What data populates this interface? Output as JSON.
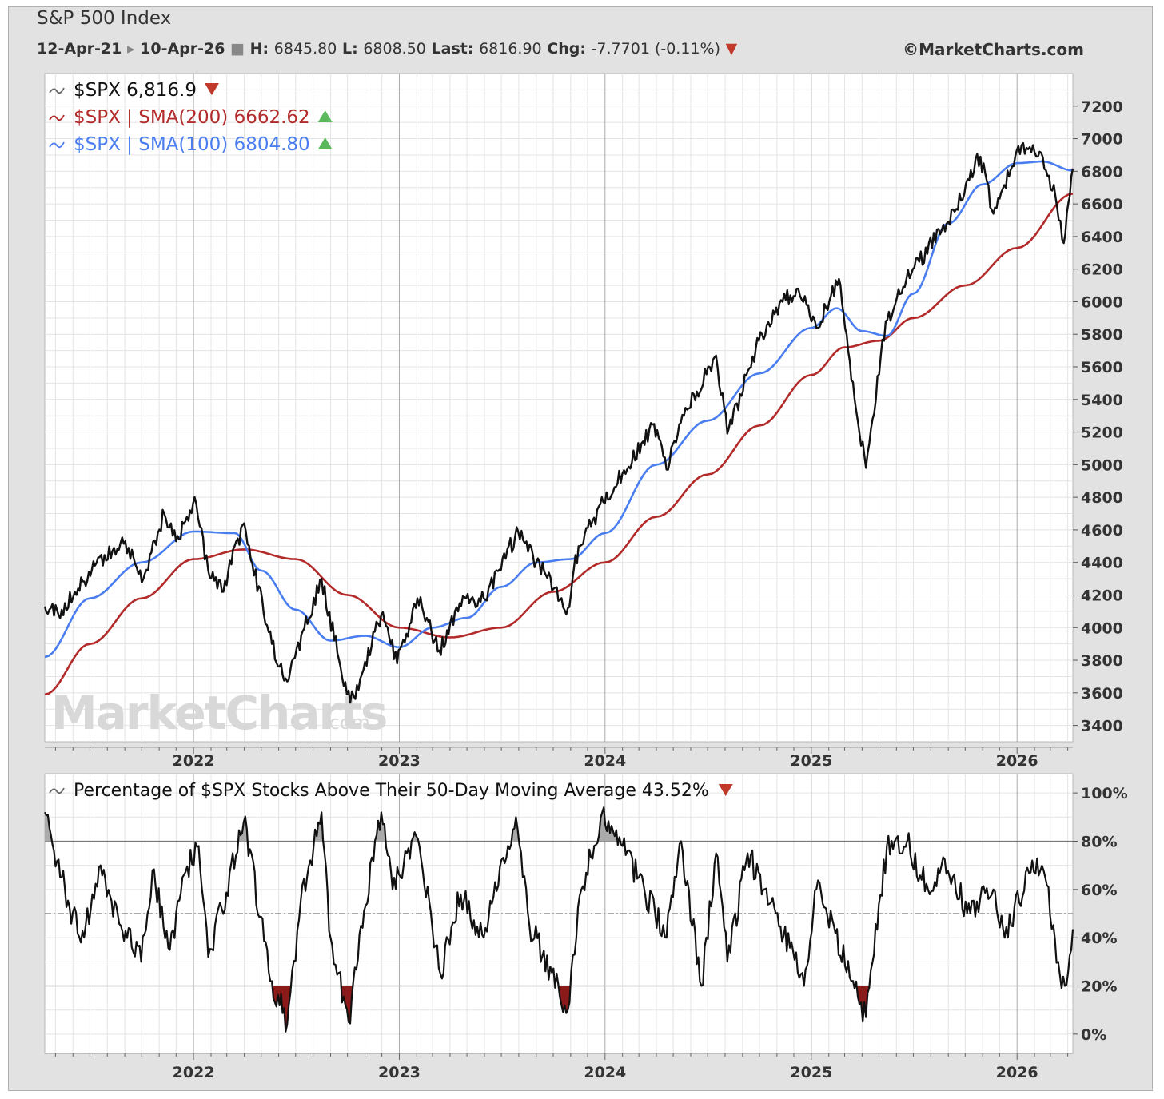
{
  "header": {
    "title": "S&P 500 Index",
    "date_start": "12-Apr-21",
    "date_end": "10-Apr-26",
    "high_label": "H:",
    "high_value": "6845.80",
    "low_label": "L:",
    "low_value": "6808.50",
    "last_label": "Last:",
    "last_value": "6816.90",
    "chg_label": "Chg:",
    "chg_value": "-7.7701 (-0.11%)",
    "copyright": "©MarketCharts.com"
  },
  "watermark": "MarketCharts.com",
  "colors": {
    "price": "#111111",
    "sma200": "#b22a2a",
    "sma100": "#4a7ef0",
    "up": "#5cb85c",
    "down": "#c0392b"
  },
  "legend_top": [
    {
      "text": "$SPX 6,816.9",
      "color": "#111111",
      "arrow": "down"
    },
    {
      "text": "$SPX | SMA(200) 6662.62",
      "color": "#b22a2a",
      "arrow": "up"
    },
    {
      "text": "$SPX | SMA(100) 6804.80",
      "color": "#4a7ef0",
      "arrow": "up"
    }
  ],
  "legend_bottom": {
    "text": "Percentage of $SPX Stocks Above Their 50-Day Moving Average 43.52%",
    "color": "#111111",
    "arrow": "down"
  },
  "chart_data": [
    {
      "type": "line",
      "x_range": [
        "2021-04-12",
        "2026-04-10"
      ],
      "x_ticks": [
        "2022",
        "2023",
        "2024",
        "2025",
        "2026"
      ],
      "ylim": [
        3300,
        7400
      ],
      "y_ticks": [
        3400,
        3600,
        3800,
        4000,
        4200,
        4400,
        4600,
        4800,
        5000,
        5200,
        5400,
        5600,
        5800,
        6000,
        6200,
        6400,
        6600,
        6800,
        7000,
        7200
      ],
      "series": [
        {
          "name": "$SPX",
          "x": [
            "2021-04-12",
            "2021-05-12",
            "2021-06-10",
            "2021-07-10",
            "2021-08-10",
            "2021-09-02",
            "2021-10-04",
            "2021-11-10",
            "2021-12-01",
            "2022-01-03",
            "2022-01-27",
            "2022-02-23",
            "2022-03-29",
            "2022-05-20",
            "2022-06-16",
            "2022-08-16",
            "2022-09-30",
            "2022-10-12",
            "2022-11-30",
            "2022-12-28",
            "2023-02-02",
            "2023-03-13",
            "2023-04-18",
            "2023-05-31",
            "2023-07-31",
            "2023-09-01",
            "2023-10-27",
            "2023-11-15",
            "2023-12-29",
            "2024-03-28",
            "2024-04-19",
            "2024-05-20",
            "2024-07-16",
            "2024-08-05",
            "2024-09-30",
            "2024-11-11",
            "2024-12-06",
            "2025-01-13",
            "2025-02-19",
            "2025-03-13",
            "2025-04-08",
            "2025-05-13",
            "2025-06-30",
            "2025-08-29",
            "2025-10-28",
            "2025-11-20",
            "2026-01-09",
            "2026-02-10",
            "2026-03-10",
            "2026-03-25",
            "2026-04-10"
          ],
          "values": [
            4130,
            4110,
            4240,
            4380,
            4470,
            4530,
            4300,
            4700,
            4530,
            4800,
            4350,
            4220,
            4630,
            3900,
            3670,
            4300,
            3590,
            3580,
            4080,
            3780,
            4180,
            3860,
            4150,
            4180,
            4590,
            4400,
            4120,
            4500,
            4770,
            5250,
            4970,
            5300,
            5670,
            5190,
            5760,
            6000,
            6080,
            5840,
            6140,
            5520,
            4980,
            5880,
            6200,
            6480,
            6890,
            6540,
            6960,
            6920,
            6650,
            6360,
            6816.9
          ]
        },
        {
          "name": "$SPX | SMA(200)",
          "x": [
            "2021-04-12",
            "2021-07-01",
            "2021-10-01",
            "2022-01-01",
            "2022-04-01",
            "2022-07-01",
            "2022-10-01",
            "2023-01-01",
            "2023-04-01",
            "2023-07-01",
            "2023-10-01",
            "2024-01-01",
            "2024-04-01",
            "2024-07-01",
            "2024-10-01",
            "2025-01-01",
            "2025-03-01",
            "2025-05-01",
            "2025-07-01",
            "2025-10-01",
            "2026-01-01",
            "2026-04-10"
          ],
          "values": [
            3590,
            3900,
            4180,
            4420,
            4480,
            4420,
            4200,
            4000,
            3940,
            4000,
            4220,
            4400,
            4680,
            4940,
            5240,
            5550,
            5720,
            5760,
            5900,
            6100,
            6330,
            6662.62
          ]
        },
        {
          "name": "$SPX | SMA(100)",
          "x": [
            "2021-04-12",
            "2021-07-01",
            "2021-10-01",
            "2022-01-01",
            "2022-03-15",
            "2022-05-01",
            "2022-07-01",
            "2022-09-01",
            "2022-11-01",
            "2023-01-01",
            "2023-03-01",
            "2023-05-01",
            "2023-07-01",
            "2023-09-01",
            "2023-11-01",
            "2024-01-01",
            "2024-04-01",
            "2024-07-01",
            "2024-10-01",
            "2025-01-01",
            "2025-02-15",
            "2025-04-01",
            "2025-05-15",
            "2025-07-01",
            "2025-09-01",
            "2025-11-01",
            "2026-01-01",
            "2026-02-15",
            "2026-04-10"
          ],
          "values": [
            3820,
            4180,
            4400,
            4590,
            4580,
            4350,
            4110,
            3920,
            3950,
            3880,
            4000,
            4060,
            4250,
            4400,
            4420,
            4580,
            5000,
            5270,
            5560,
            5840,
            5960,
            5820,
            5790,
            6050,
            6480,
            6720,
            6850,
            6860,
            6804.8
          ]
        }
      ]
    },
    {
      "type": "line",
      "x_range": [
        "2021-04-12",
        "2026-04-10"
      ],
      "x_ticks": [
        "2022",
        "2023",
        "2024",
        "2025",
        "2026"
      ],
      "ylim": [
        -8,
        108
      ],
      "y_ticks": [
        0,
        20,
        40,
        60,
        80,
        100
      ],
      "y_tick_labels": [
        "0%",
        "20%",
        "40%",
        "60%",
        "80%",
        "100%"
      ],
      "reference_lines": [
        20,
        50,
        80
      ],
      "series": [
        {
          "name": "Percentage of $SPX Stocks Above Their 50-Day Moving Average",
          "x": [
            "2021-04-12",
            "2021-05-12",
            "2021-06-15",
            "2021-07-20",
            "2021-08-25",
            "2021-09-30",
            "2021-10-20",
            "2021-11-20",
            "2021-12-15",
            "2022-01-10",
            "2022-01-27",
            "2022-02-20",
            "2022-03-31",
            "2022-05-20",
            "2022-06-16",
            "2022-07-10",
            "2022-08-16",
            "2022-09-01",
            "2022-10-03",
            "2022-10-25",
            "2022-11-30",
            "2022-12-20",
            "2023-01-31",
            "2023-03-15",
            "2023-04-20",
            "2023-05-31",
            "2023-07-27",
            "2023-08-20",
            "2023-10-27",
            "2023-11-20",
            "2023-12-27",
            "2024-02-01",
            "2024-04-19",
            "2024-05-15",
            "2024-06-20",
            "2024-07-16",
            "2024-08-05",
            "2024-09-10",
            "2024-10-30",
            "2024-12-19",
            "2025-01-10",
            "2025-02-10",
            "2025-03-13",
            "2025-04-08",
            "2025-05-15",
            "2025-06-20",
            "2025-07-30",
            "2025-08-20",
            "2025-10-10",
            "2025-11-20",
            "2025-12-10",
            "2026-01-28",
            "2026-02-20",
            "2026-03-15",
            "2026-03-27",
            "2026-04-10"
          ],
          "values": [
            92,
            65,
            38,
            70,
            45,
            30,
            68,
            35,
            66,
            78,
            32,
            52,
            88,
            22,
            4,
            55,
            92,
            40,
            5,
            45,
            92,
            60,
            82,
            25,
            58,
            40,
            90,
            45,
            10,
            60,
            92,
            78,
            40,
            80,
            20,
            75,
            30,
            75,
            50,
            20,
            60,
            45,
            22,
            7,
            78,
            80,
            58,
            70,
            50,
            60,
            40,
            72,
            65,
            30,
            20,
            43.52
          ]
        }
      ]
    }
  ]
}
